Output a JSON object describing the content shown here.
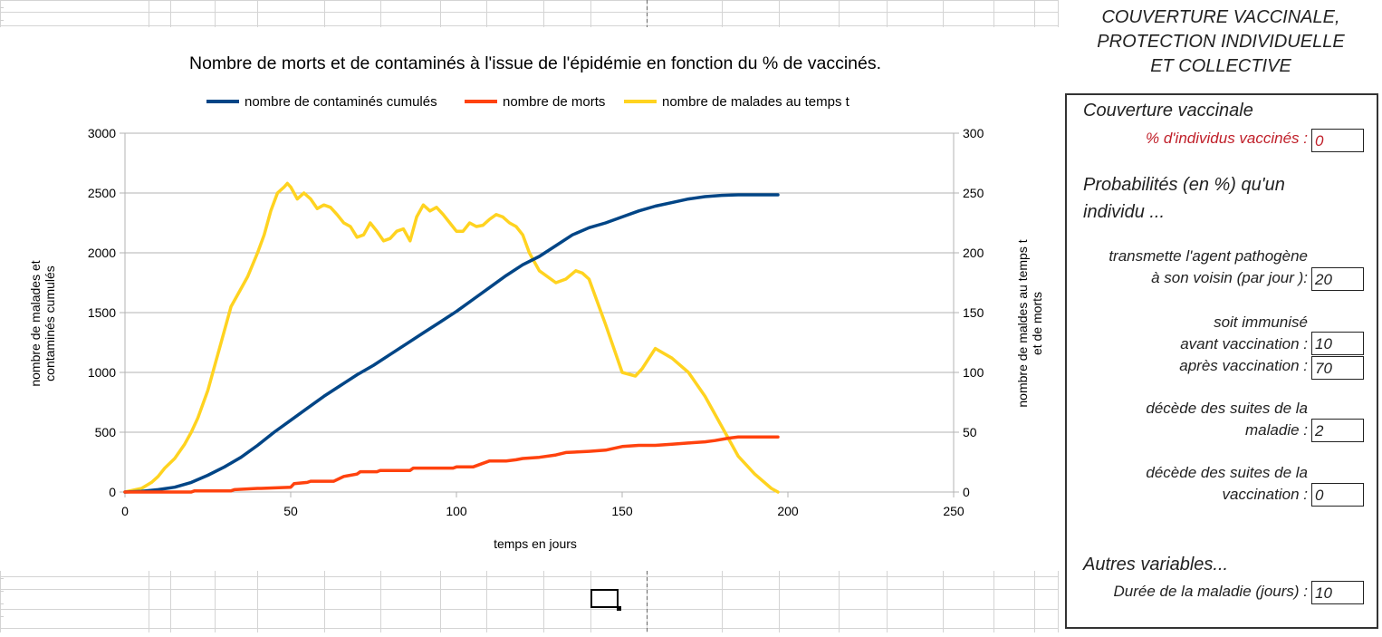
{
  "chart_data": {
    "type": "line",
    "title": "Nombre de morts et de contaminés à l'issue de l'épidémie en fonction du % de vaccinés.",
    "xlabel": "temps en jours",
    "ylabel": "nombre de malades et contaminés cumulés",
    "ylabel_lines": [
      "nombre de malades et",
      "contaminés cumulés"
    ],
    "y2label": "nombre de maldes au temps t et de morts",
    "y2label_lines": [
      "nombre de maldes au temps t",
      "et de morts"
    ],
    "xlim": [
      0,
      250
    ],
    "ylim": [
      0,
      3000
    ],
    "y2lim": [
      0,
      300
    ],
    "x_ticks": [
      "0",
      "50",
      "100",
      "150",
      "200",
      "250"
    ],
    "y_ticks": [
      "0",
      "500",
      "1000",
      "1500",
      "2000",
      "2500",
      "3000"
    ],
    "y2_ticks": [
      "0",
      "50",
      "100",
      "150",
      "200",
      "250",
      "300"
    ],
    "grid": "horizontal",
    "legend_position": "top",
    "series": [
      {
        "name": "nombre de contaminés cumulés",
        "color": "#004586",
        "axis": "left",
        "x": [
          0,
          5,
          10,
          15,
          20,
          25,
          30,
          35,
          40,
          45,
          50,
          55,
          60,
          65,
          70,
          75,
          80,
          85,
          90,
          95,
          100,
          105,
          110,
          115,
          120,
          125,
          130,
          135,
          140,
          145,
          150,
          155,
          160,
          165,
          170,
          175,
          180,
          185,
          190,
          197
        ],
        "values": [
          0,
          5,
          20,
          40,
          80,
          140,
          210,
          290,
          390,
          500,
          600,
          700,
          800,
          890,
          980,
          1060,
          1150,
          1240,
          1330,
          1420,
          1510,
          1610,
          1710,
          1810,
          1900,
          1970,
          2060,
          2150,
          2210,
          2250,
          2300,
          2350,
          2390,
          2420,
          2450,
          2470,
          2480,
          2485,
          2485,
          2485
        ]
      },
      {
        "name": "nombre de morts",
        "color": "#ff420e",
        "axis": "right",
        "x": [
          0,
          20,
          21,
          32,
          33,
          40,
          41,
          50,
          51,
          55,
          56,
          63,
          66,
          70,
          71,
          76,
          77,
          86,
          87,
          99,
          100,
          105,
          108,
          110,
          115,
          118,
          120,
          125,
          130,
          133,
          140,
          145,
          150,
          155,
          160,
          165,
          170,
          175,
          178,
          182,
          185,
          190,
          197
        ],
        "values": [
          0,
          0,
          1,
          1,
          2,
          3,
          3,
          4,
          7,
          8,
          9,
          9,
          13,
          15,
          17,
          17,
          18,
          18,
          20,
          20,
          21,
          21,
          24,
          26,
          26,
          27,
          28,
          29,
          31,
          33,
          34,
          35,
          38,
          39,
          39,
          40,
          41,
          42,
          43,
          45,
          46,
          46,
          46
        ]
      },
      {
        "name": "nombre de malades au temps t",
        "color": "#ffd320",
        "axis": "right",
        "x": [
          0,
          5,
          8,
          10,
          12,
          15,
          18,
          20,
          22,
          25,
          28,
          30,
          32,
          35,
          37,
          40,
          42,
          44,
          46,
          48,
          49,
          50,
          52,
          54,
          56,
          58,
          60,
          62,
          64,
          66,
          68,
          70,
          72,
          74,
          76,
          78,
          80,
          82,
          84,
          86,
          88,
          90,
          92,
          94,
          96,
          98,
          100,
          102,
          104,
          106,
          108,
          110,
          112,
          114,
          116,
          118,
          120,
          122,
          125,
          130,
          133,
          136,
          138,
          140,
          145,
          150,
          154,
          156,
          160,
          165,
          170,
          175,
          180,
          185,
          190,
          195,
          197
        ],
        "values": [
          0,
          3,
          8,
          13,
          20,
          28,
          40,
          50,
          62,
          85,
          115,
          135,
          155,
          170,
          180,
          200,
          215,
          235,
          250,
          255,
          258,
          255,
          245,
          250,
          245,
          237,
          240,
          238,
          232,
          225,
          222,
          213,
          215,
          225,
          218,
          210,
          212,
          218,
          220,
          210,
          230,
          240,
          235,
          238,
          232,
          225,
          218,
          218,
          225,
          222,
          223,
          228,
          232,
          230,
          225,
          222,
          215,
          200,
          185,
          175,
          178,
          185,
          183,
          178,
          140,
          100,
          97,
          103,
          120,
          112,
          100,
          80,
          55,
          30,
          15,
          3,
          0
        ]
      }
    ]
  },
  "panel": {
    "title_lines": [
      "COUVERTURE VACCINALE,",
      "PROTECTION INDIVIDUELLE",
      "ET COLLECTIVE"
    ],
    "section_vaccination": "Couverture vaccinale",
    "label_pct_vaccinated": "% d'individus vaccinés :",
    "value_pct_vaccinated": "0",
    "section_probabilities_line1": "Probabilités (en %) qu'un",
    "section_probabilities_line2": "individu ...",
    "label_transmit_line1": "transmette l'agent pathogène",
    "label_transmit_line2": "à son voisin (par jour ):",
    "value_transmit": "20",
    "label_immunized": "soit immunisé",
    "label_before_vacc": "avant vaccination :",
    "value_before_vacc": "10",
    "label_after_vacc": "après vaccination :",
    "value_after_vacc": "70",
    "label_death_disease_line1": "décède des suites de la",
    "label_death_disease_line2": "maladie :",
    "value_death_disease": "2",
    "label_death_vacc_line1": "décède des suites de la",
    "label_death_vacc_line2": "vaccination :",
    "value_death_vacc": "0",
    "section_other": "Autres variables...",
    "label_duration": "Durée de la maladie (jours) :",
    "value_duration": "10"
  }
}
